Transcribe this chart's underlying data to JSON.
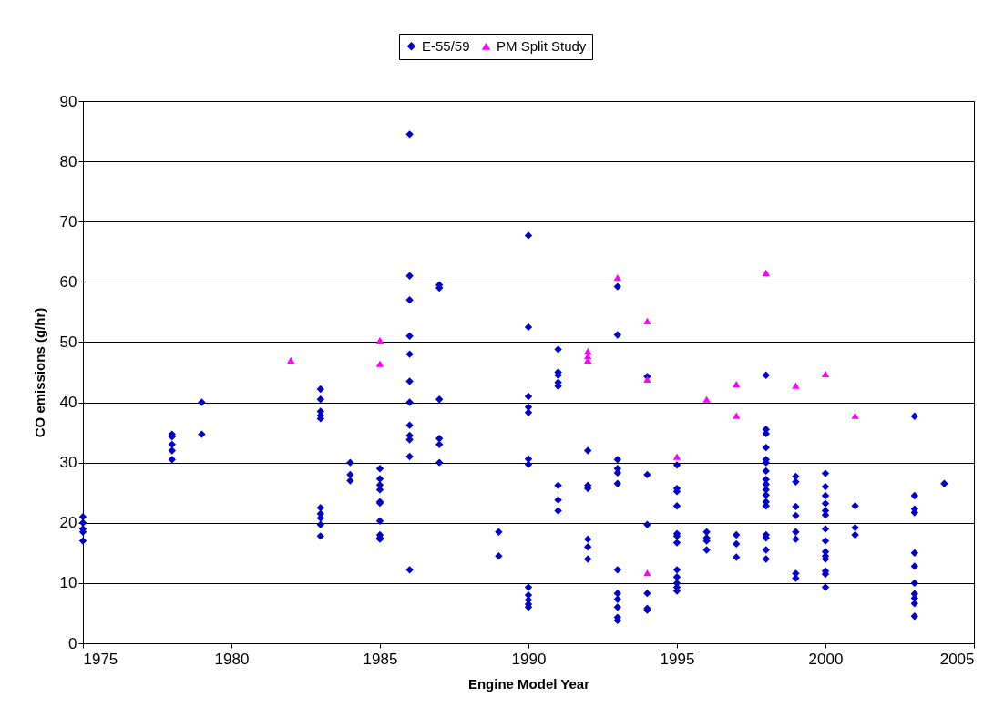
{
  "chart_data": {
    "type": "scatter",
    "xlabel": "Engine Model Year",
    "ylabel": "CO emissions (g/hr)",
    "xlim": [
      1975,
      2005
    ],
    "xticks": [
      1975,
      1980,
      1985,
      1990,
      1995,
      2000,
      2005
    ],
    "ylim": [
      0,
      90
    ],
    "yticks": [
      0,
      10,
      20,
      30,
      40,
      50,
      60,
      70,
      80,
      90
    ],
    "grid": "y",
    "legend": "top",
    "series": [
      {
        "name": "E-55/59",
        "color": "#0000cc",
        "marker": "diamond",
        "x": [
          1975,
          1975,
          1975,
          1975,
          1975,
          1978,
          1978,
          1978,
          1978,
          1978,
          1979,
          1979,
          1983,
          1983,
          1983,
          1983,
          1983,
          1983,
          1983,
          1983,
          1983,
          1983,
          1984,
          1984,
          1984,
          1985,
          1985,
          1985,
          1985,
          1985,
          1985,
          1985,
          1985,
          1985,
          1985,
          1986,
          1986,
          1986,
          1986,
          1986,
          1986,
          1986,
          1986,
          1986,
          1986,
          1986,
          1986,
          1987,
          1987,
          1987,
          1987,
          1987,
          1987,
          1989,
          1989,
          1990,
          1990,
          1990,
          1990,
          1990,
          1990,
          1990,
          1990,
          1990,
          1990,
          1990,
          1990,
          1991,
          1991,
          1991,
          1991,
          1991,
          1991,
          1991,
          1991,
          1992,
          1992,
          1992,
          1992,
          1992,
          1992,
          1993,
          1993,
          1993,
          1993,
          1993,
          1993,
          1993,
          1993,
          1993,
          1993,
          1993,
          1993,
          1994,
          1994,
          1994,
          1994,
          1994,
          1994,
          1995,
          1995,
          1995,
          1995,
          1995,
          1995,
          1995,
          1995,
          1995,
          1995,
          1995,
          1995,
          1996,
          1996,
          1996,
          1996,
          1997,
          1997,
          1997,
          1998,
          1998,
          1998,
          1998,
          1998,
          1998,
          1998,
          1998,
          1998,
          1998,
          1998,
          1998,
          1998,
          1998,
          1998,
          1998,
          1998,
          1999,
          1999,
          1999,
          1999,
          1999,
          1999,
          1999,
          1999,
          2000,
          2000,
          2000,
          2000,
          2000,
          2000,
          2000,
          2000,
          2000,
          2000,
          2000,
          2000,
          2000,
          2000,
          2001,
          2001,
          2001,
          2003,
          2003,
          2003,
          2003,
          2003,
          2003,
          2003,
          2003,
          2003,
          2003,
          2003,
          2004
        ],
        "values": [
          21,
          20,
          19,
          18.5,
          17,
          34.7,
          34.3,
          33,
          32,
          30.5,
          40,
          34.7,
          42.2,
          40.5,
          38.5,
          37.8,
          37.3,
          22.5,
          21.5,
          20.8,
          19.7,
          17.8,
          30,
          28,
          27,
          29,
          27.3,
          26.3,
          25.5,
          23.5,
          23.3,
          20.3,
          18,
          17.5,
          17.3,
          84.5,
          61,
          57,
          51,
          48,
          43.5,
          40,
          36.2,
          34.5,
          33.8,
          31,
          12.2,
          59.5,
          59,
          40.5,
          34,
          33,
          30,
          18.5,
          14.5,
          67.7,
          52.5,
          41,
          39.2,
          38.3,
          30.6,
          29.7,
          9.3,
          8,
          7.2,
          6.5,
          6,
          48.8,
          45,
          44.5,
          43.3,
          42.7,
          26.2,
          23.8,
          22,
          32,
          26.2,
          25.7,
          17.3,
          16,
          14,
          59.2,
          51.2,
          30.5,
          29,
          28.3,
          26.5,
          12.2,
          8.3,
          7.3,
          6,
          4.3,
          3.8,
          44.3,
          28,
          19.7,
          8.3,
          5.8,
          5.5,
          29.6,
          25.7,
          25.2,
          22.8,
          18.2,
          17.8,
          16.7,
          12.2,
          11,
          10,
          9.3,
          8.7,
          18.5,
          17.5,
          17,
          15.5,
          18,
          16.5,
          14.3,
          44.5,
          35.5,
          34.8,
          32.5,
          30.5,
          30,
          28.6,
          27.2,
          26.4,
          25.5,
          24.6,
          23.5,
          22.8,
          18,
          17.5,
          15.5,
          14,
          27.7,
          26.8,
          22.7,
          21.2,
          18.5,
          17.3,
          11.6,
          10.8,
          28.2,
          26,
          24.5,
          23.2,
          22,
          21.3,
          19,
          17,
          15.2,
          14.5,
          14,
          12,
          11.5,
          9.3,
          22.8,
          19.2,
          18,
          37.7,
          24.5,
          22.3,
          21.7,
          15,
          12.8,
          10,
          8.2,
          7.5,
          6.6,
          4.5,
          26.5
        ]
      },
      {
        "name": "PM Split Study",
        "color": "#ff00ff",
        "marker": "triangle",
        "x": [
          1982,
          1985,
          1985,
          1992,
          1992,
          1992,
          1993,
          1994,
          1994,
          1994,
          1995,
          1996,
          1997,
          1997,
          1998,
          1999,
          2000,
          2001
        ],
        "values": [
          47,
          50.3,
          46.4,
          48.5,
          47.7,
          47,
          60.7,
          53.5,
          43.8,
          11.7,
          31,
          40.5,
          43,
          37.8,
          61.5,
          42.8,
          44.7,
          37.8
        ]
      }
    ]
  }
}
